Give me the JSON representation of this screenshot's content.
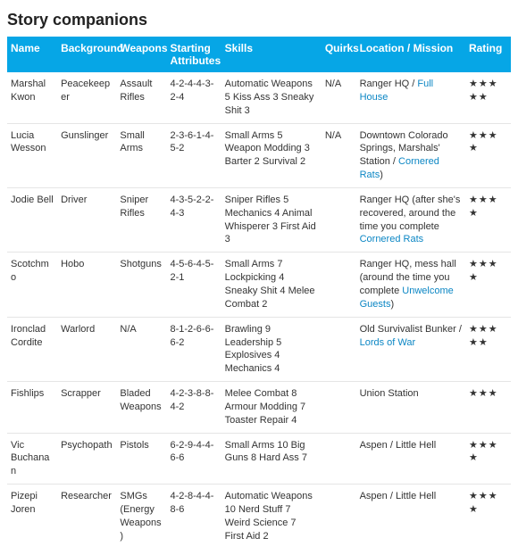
{
  "title": "Story companions",
  "columns": [
    "Name",
    "Background",
    "Weapons",
    "Starting Attributes",
    "Skills",
    "Quirks",
    "Location / Mission",
    "Rating"
  ],
  "colors": {
    "header_bg": "#06a6e6",
    "header_fg": "#ffffff",
    "link": "#0b86c4",
    "border": "#e5e5e5",
    "text": "#333333"
  },
  "rows": [
    {
      "name": "Marshal Kwon",
      "background": "Peacekeeper",
      "weapons": "Assault Rifles",
      "attrs": "4-2-4-4-3-2-4",
      "skills": "Automatic Weapons 5 Kiss Ass 3 Sneaky Shit 3",
      "quirks": "N/A",
      "loc_pre": "Ranger HQ / ",
      "loc_link": "Full House",
      "loc_post": "",
      "rating": "★★★★★"
    },
    {
      "name": "Lucia Wesson",
      "background": "Gunslinger",
      "weapons": "Small Arms",
      "attrs": "2-3-6-1-4-5-2",
      "skills": "Small Arms 5 Weapon Modding 3 Barter 2 Survival 2",
      "quirks": "N/A",
      "loc_pre": "Downtown Colorado Springs, Marshals' Station / ",
      "loc_link": "Cornered Rats",
      "loc_post": ")",
      "rating": "★★★★"
    },
    {
      "name": "Jodie Bell",
      "background": "Driver",
      "weapons": "Sniper Rifles",
      "attrs": "4-3-5-2-2-4-3",
      "skills": "Sniper Rifles 5 Mechanics 4 Animal Whisperer 3 First Aid 3",
      "quirks": "",
      "loc_pre": "Ranger HQ (after she's recovered, around the time you complete ",
      "loc_link": "Cornered Rats",
      "loc_post": "",
      "rating": "★★★★"
    },
    {
      "name": "Scotchmo",
      "background": "Hobo",
      "weapons": "Shotguns",
      "attrs": "4-5-6-4-5-2-1",
      "skills": "Small Arms 7 Lockpicking 4 Sneaky Shit 4 Melee Combat 2",
      "quirks": "",
      "loc_pre": "Ranger HQ, mess hall (around the time you complete ",
      "loc_link": "Unwelcome Guests",
      "loc_post": ")",
      "rating": "★★★★"
    },
    {
      "name": "Ironclad Cordite",
      "background": "Warlord",
      "weapons": "N/A",
      "attrs": "8-1-2-6-6-6-2",
      "skills": "Brawling 9 Leadership 5 Explosives 4 Mechanics 4",
      "quirks": "",
      "loc_pre": "Old Survivalist Bunker / ",
      "loc_link": "Lords of War",
      "loc_post": "",
      "rating": "★★★★★"
    },
    {
      "name": "Fishlips",
      "background": "Scrapper",
      "weapons": "Bladed Weapons",
      "attrs": "4-2-3-8-8-4-2",
      "skills": "Melee Combat 8 Armour Modding 7 Toaster Repair 4",
      "quirks": "",
      "loc_pre": "Union Station",
      "loc_link": "",
      "loc_post": "",
      "rating": "★★★"
    },
    {
      "name": "Vic Buchanan",
      "background": "Psychopath",
      "weapons": "Pistols",
      "attrs": "6-2-9-4-4-6-6",
      "skills": "Small Arms 10 Big Guns 8 Hard Ass 7",
      "quirks": "",
      "loc_pre": "Aspen / Little Hell",
      "loc_link": "",
      "loc_post": "",
      "rating": "★★★★"
    },
    {
      "name": "Pizepi Joren",
      "background": "Researcher",
      "weapons": "SMGs (Energy Weapons)",
      "attrs": "4-2-8-4-4-8-6",
      "skills": "Automatic Weapons 10 Nerd Stuff 7 Weird Science 7 First Aid 2",
      "quirks": "",
      "loc_pre": "Aspen / Little Hell",
      "loc_link": "",
      "loc_post": "",
      "rating": "★★★★"
    }
  ]
}
